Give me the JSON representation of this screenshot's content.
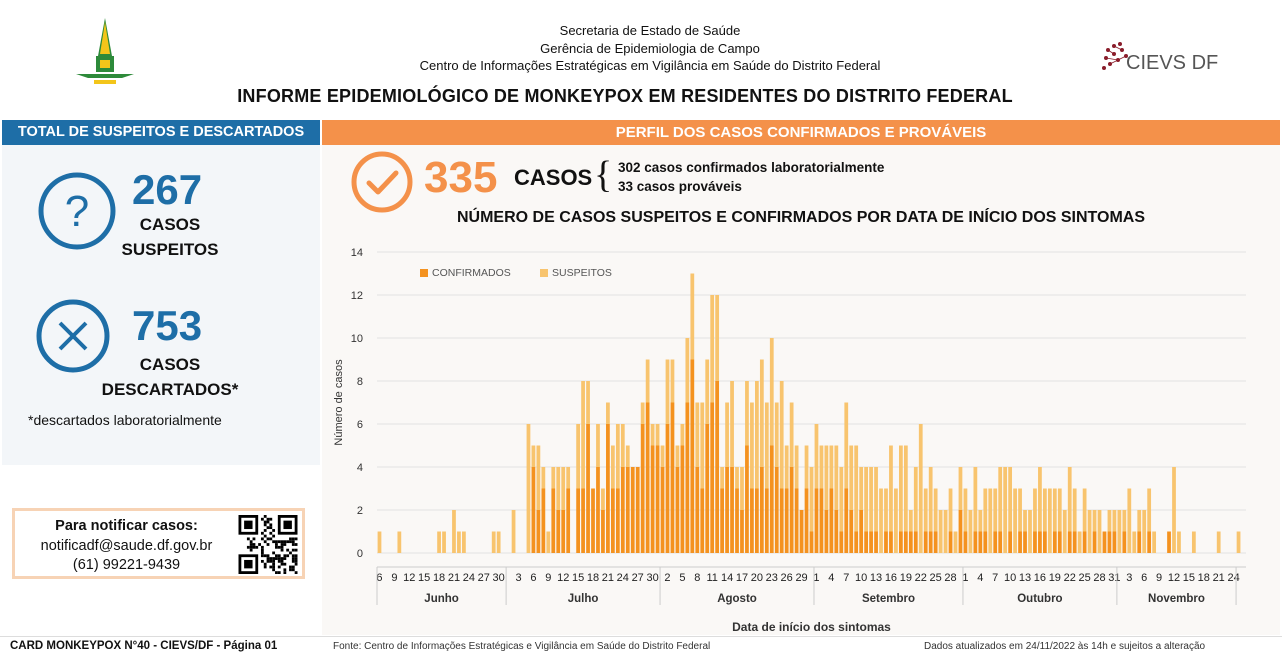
{
  "header": {
    "lines": [
      "Secretaria de Estado de Saúde",
      "Gerência de Epidemiologia de Campo",
      "Centro de Informações Estratégicas em Vigilância em Saúde do Distrito Federal"
    ],
    "title": "INFORME EPIDEMIOLÓGICO DE MONKEYPOX EM RESIDENTES DO DISTRITO FEDERAL",
    "cievs_logo_text": "CIEVS DF"
  },
  "left": {
    "heading": "TOTAL DE SUSPEITOS E DESCARTADOS",
    "suspects": {
      "value": "267",
      "label_line1": "CASOS",
      "label_line2": "SUSPEITOS"
    },
    "discarded": {
      "value": "753",
      "label_line1": "CASOS",
      "label_line2": "DESCARTADOS*"
    },
    "footnote": "*descartados laboratorialmente",
    "notify": {
      "line1": "Para notificar casos:",
      "email": "notificadf@saude.df.gov.br",
      "phone": "(61) 99221-9439"
    }
  },
  "right": {
    "heading": "PERFIL DOS CASOS CONFIRMADOS E PROVÁVEIS",
    "cases_total": "335",
    "cases_word": "CASOS",
    "cases_line1": "302 casos confirmados laboratorialmente",
    "cases_line2": "33 casos prováveis"
  },
  "colors": {
    "blue": "#1e6ea7",
    "orange": "#f4914a",
    "confirmed": "#f4921f",
    "suspected": "#f8c46e"
  },
  "chart_data": {
    "type": "bar",
    "stacked": true,
    "title": "NÚMERO DE CASOS SUSPEITOS E CONFIRMADOS POR DATA DE INÍCIO DOS SINTOMAS",
    "xlabel": "Data de início dos sintomas",
    "ylabel": "Número de casos",
    "ylim": [
      0,
      14
    ],
    "yticks": [
      0,
      2,
      4,
      6,
      8,
      10,
      12,
      14
    ],
    "grid": true,
    "legend": "top-left",
    "months": [
      {
        "name": "Junho",
        "start": 0,
        "days": 26
      },
      {
        "name": "Julho",
        "start": 26,
        "days": 31
      },
      {
        "name": "Agosto",
        "start": 57,
        "days": 31
      },
      {
        "name": "Setembro",
        "start": 88,
        "days": 30
      },
      {
        "name": "Outubro",
        "start": 118,
        "days": 31
      },
      {
        "name": "Novembro",
        "start": 149,
        "days": 24
      }
    ],
    "tick_labels": [
      {
        "i": 0,
        "t": "6"
      },
      {
        "i": 3,
        "t": "9"
      },
      {
        "i": 6,
        "t": "12"
      },
      {
        "i": 9,
        "t": "15"
      },
      {
        "i": 12,
        "t": "18"
      },
      {
        "i": 15,
        "t": "21"
      },
      {
        "i": 18,
        "t": "24"
      },
      {
        "i": 21,
        "t": "27"
      },
      {
        "i": 24,
        "t": "30"
      },
      {
        "i": 28,
        "t": "3"
      },
      {
        "i": 31,
        "t": "6"
      },
      {
        "i": 34,
        "t": "9"
      },
      {
        "i": 37,
        "t": "12"
      },
      {
        "i": 40,
        "t": "15"
      },
      {
        "i": 43,
        "t": "18"
      },
      {
        "i": 46,
        "t": "21"
      },
      {
        "i": 49,
        "t": "24"
      },
      {
        "i": 52,
        "t": "27"
      },
      {
        "i": 55,
        "t": "30"
      },
      {
        "i": 58,
        "t": "2"
      },
      {
        "i": 61,
        "t": "5"
      },
      {
        "i": 64,
        "t": "8"
      },
      {
        "i": 67,
        "t": "11"
      },
      {
        "i": 70,
        "t": "14"
      },
      {
        "i": 73,
        "t": "17"
      },
      {
        "i": 76,
        "t": "20"
      },
      {
        "i": 79,
        "t": "23"
      },
      {
        "i": 82,
        "t": "26"
      },
      {
        "i": 85,
        "t": "29"
      },
      {
        "i": 88,
        "t": "1"
      },
      {
        "i": 91,
        "t": "4"
      },
      {
        "i": 94,
        "t": "7"
      },
      {
        "i": 97,
        "t": "10"
      },
      {
        "i": 100,
        "t": "13"
      },
      {
        "i": 103,
        "t": "16"
      },
      {
        "i": 106,
        "t": "19"
      },
      {
        "i": 109,
        "t": "22"
      },
      {
        "i": 112,
        "t": "25"
      },
      {
        "i": 115,
        "t": "28"
      },
      {
        "i": 118,
        "t": "1"
      },
      {
        "i": 121,
        "t": "4"
      },
      {
        "i": 124,
        "t": "7"
      },
      {
        "i": 127,
        "t": "10"
      },
      {
        "i": 130,
        "t": "13"
      },
      {
        "i": 133,
        "t": "16"
      },
      {
        "i": 136,
        "t": "19"
      },
      {
        "i": 139,
        "t": "22"
      },
      {
        "i": 142,
        "t": "25"
      },
      {
        "i": 145,
        "t": "28"
      },
      {
        "i": 148,
        "t": "31"
      },
      {
        "i": 151,
        "t": "3"
      },
      {
        "i": 154,
        "t": "6"
      },
      {
        "i": 157,
        "t": "9"
      },
      {
        "i": 160,
        "t": "12"
      },
      {
        "i": 163,
        "t": "15"
      },
      {
        "i": 166,
        "t": "18"
      },
      {
        "i": 169,
        "t": "21"
      },
      {
        "i": 172,
        "t": "24"
      }
    ],
    "series": [
      {
        "name": "CONFIRMADOS",
        "values": [
          0,
          0,
          0,
          0,
          0,
          0,
          0,
          0,
          0,
          0,
          0,
          0,
          0,
          0,
          0,
          0,
          0,
          0,
          0,
          0,
          0,
          0,
          0,
          0,
          0,
          0,
          0,
          0,
          0,
          0,
          0,
          4,
          2,
          3,
          0,
          3,
          2,
          2,
          3,
          0,
          3,
          3,
          6,
          3,
          4,
          2,
          6,
          3,
          3,
          4,
          4,
          4,
          4,
          6,
          7,
          5,
          5,
          4,
          6,
          7,
          4,
          5,
          7,
          9,
          4,
          3,
          6,
          7,
          8,
          3,
          4,
          4,
          3,
          2,
          5,
          3,
          3,
          4,
          3,
          5,
          4,
          3,
          3,
          4,
          3,
          2,
          3,
          1,
          3,
          3,
          2,
          3,
          2,
          1,
          3,
          2,
          1,
          2,
          1,
          1,
          1,
          0,
          1,
          1,
          0,
          1,
          1,
          1,
          1,
          0,
          1,
          1,
          1,
          0,
          0,
          1,
          0,
          2,
          1,
          0,
          1,
          1,
          1,
          0,
          1,
          1,
          0,
          1,
          0,
          1,
          1,
          0,
          1,
          1,
          1,
          0,
          1,
          1,
          0,
          1,
          1,
          0,
          1,
          0,
          1,
          0,
          1,
          1,
          1,
          0,
          1,
          0,
          0,
          1,
          0,
          1,
          0,
          0,
          0,
          1,
          0,
          0,
          0,
          0,
          0,
          0,
          0,
          0,
          0,
          0,
          0,
          0,
          0,
          0,
          0
        ]
      },
      {
        "name": "SUSPEITOS",
        "values": [
          1,
          0,
          0,
          0,
          1,
          0,
          0,
          0,
          0,
          0,
          0,
          0,
          1,
          1,
          0,
          2,
          1,
          1,
          0,
          0,
          0,
          0,
          0,
          1,
          1,
          0,
          0,
          2,
          0,
          0,
          6,
          1,
          3,
          1,
          1,
          1,
          2,
          2,
          1,
          0,
          3,
          5,
          2,
          0,
          2,
          1,
          1,
          2,
          3,
          2,
          1,
          0,
          0,
          1,
          2,
          1,
          1,
          1,
          3,
          2,
          1,
          1,
          3,
          4,
          3,
          4,
          3,
          5,
          4,
          1,
          3,
          4,
          1,
          2,
          3,
          4,
          5,
          5,
          4,
          5,
          3,
          5,
          2,
          3,
          2,
          0,
          2,
          3,
          3,
          2,
          3,
          2,
          3,
          3,
          4,
          3,
          4,
          2,
          3,
          3,
          3,
          3,
          2,
          4,
          3,
          4,
          4,
          1,
          3,
          6,
          2,
          3,
          2,
          2,
          2,
          2,
          1,
          2,
          2,
          2,
          3,
          1,
          2,
          3,
          2,
          3,
          4,
          3,
          3,
          2,
          1,
          2,
          2,
          3,
          2,
          3,
          2,
          2,
          2,
          3,
          2,
          1,
          2,
          2,
          1,
          2,
          0,
          1,
          1,
          2,
          1,
          3,
          1,
          1,
          2,
          2,
          1,
          0,
          0,
          0,
          4,
          1,
          0,
          0,
          1,
          0,
          0,
          0,
          0,
          1,
          0,
          0,
          0,
          1,
          0
        ]
      }
    ]
  },
  "footer": {
    "left": "CARD MONKEYPOX N°40 - CIEVS/DF - Página 01",
    "mid": "Fonte: Centro de Informações Estratégicas e Vigilância em Saúde do Distrito Federal",
    "right": "Dados atualizados em 24/11/2022 às 14h e sujeitos a alteração"
  }
}
